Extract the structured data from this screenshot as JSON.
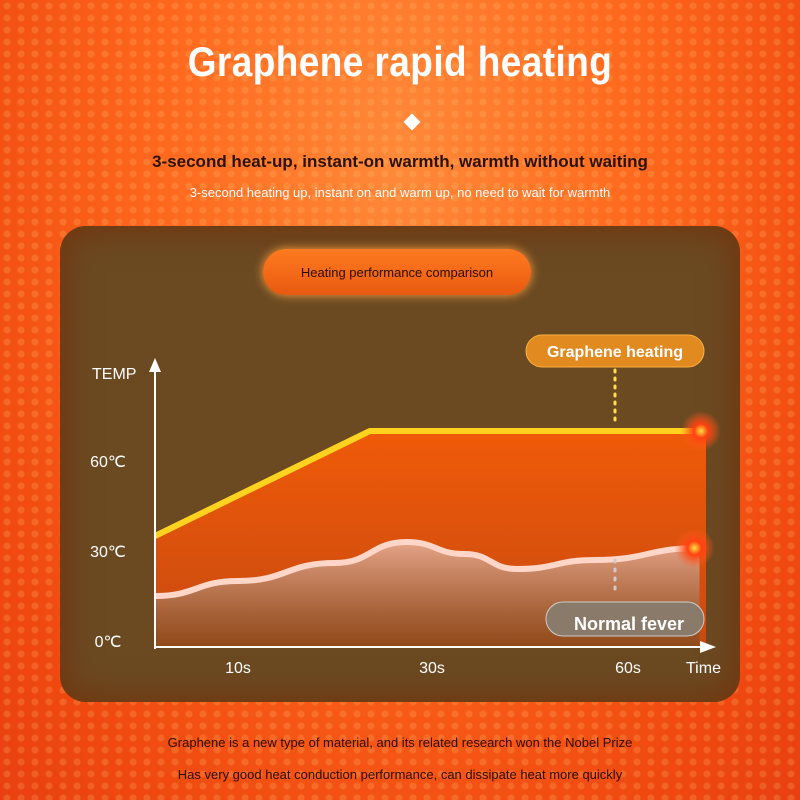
{
  "header": {
    "title": "Graphene rapid heating",
    "subtitle": "3-second heat-up, instant-on warmth, warmth without waiting",
    "subtitle2": "3-second heating up, instant on and warm up, no need to wait for warmth"
  },
  "panel_title": "Heating performance comparison",
  "chart_data": {
    "type": "area",
    "ylabel": "TEMP",
    "xlabel": "Time",
    "y_ticks": [
      "0℃",
      "30℃",
      "60℃"
    ],
    "y_tick_values": [
      0,
      30,
      60
    ],
    "x_ticks": [
      "10s",
      "30s",
      "60s"
    ],
    "x_tick_values": [
      10,
      30,
      60
    ],
    "series": [
      {
        "name": "Graphene heating",
        "color": "#ffd21f",
        "x": [
          0,
          23.6,
          72
        ],
        "y": [
          35,
          70,
          70
        ]
      },
      {
        "name": "Normal fever",
        "color": "#ffd6c8",
        "x": [
          0,
          10,
          20,
          27.4,
          35,
          43,
          55,
          71
        ],
        "y": [
          15,
          20,
          26,
          33,
          29,
          24,
          27,
          31
        ]
      }
    ]
  },
  "footer": {
    "line1": "Graphene is a new type of material, and its related research won the Nobel Prize",
    "line2": "Has very good heat conduction performance, can dissipate heat more quickly"
  }
}
